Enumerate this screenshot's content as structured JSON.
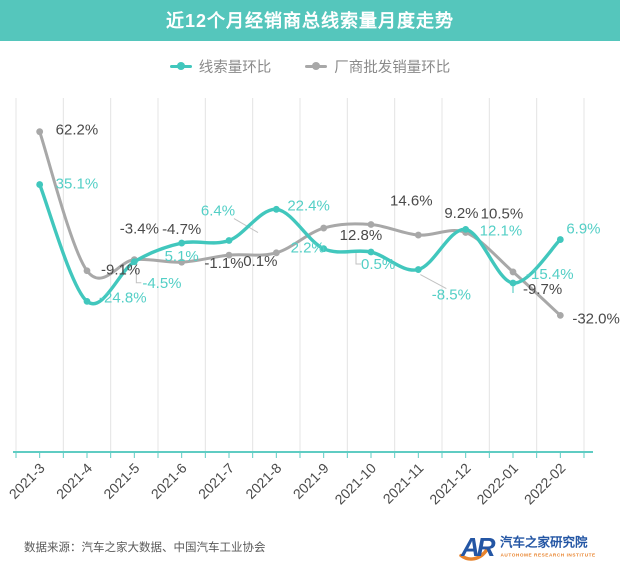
{
  "header": {
    "title": "近12个月经销商总线索量月度走势",
    "bg_color": "#55c6bc",
    "text_color": "#ffffff"
  },
  "legend": {
    "items": [
      {
        "label": "线索量环比",
        "color": "#41c7bd"
      },
      {
        "label": "厂商批发销量环比",
        "color": "#a8a8a8"
      }
    ]
  },
  "chart_data": {
    "type": "line",
    "title": "近12个月经销商总线索量月度走势",
    "unit": "%",
    "categories": [
      "2021-3",
      "2021-4",
      "2021-5",
      "2021-6",
      "2021-7",
      "2021-8",
      "2021-9",
      "2021-10",
      "2021-11",
      "2021-12",
      "2022-01",
      "2022-02"
    ],
    "series": [
      {
        "name": "线索量环比",
        "color": "#41c7bd",
        "label_color": "#53cfc6",
        "values": [
          35.1,
          -24.8,
          -4.5,
          5.1,
          6.4,
          22.4,
          2.2,
          0.5,
          -8.5,
          12.1,
          -15.4,
          6.9
        ]
      },
      {
        "name": "厂商批发销量环比",
        "color": "#a8a8a8",
        "label_color": "#4a4a4a",
        "values": [
          62.2,
          -9.1,
          -3.4,
          -4.7,
          -1.1,
          0.1,
          12.8,
          14.6,
          9.2,
          10.5,
          -9.7,
          -32.0
        ]
      }
    ],
    "point_labels_visible": true,
    "label_format": "one-decimal-percent",
    "legend_position": "top",
    "grid": "vertical-only",
    "grid_color": "#e4e4e4",
    "axis_color": "#5fccc3",
    "tick_label_color": "#4a4a4a",
    "y_axis_labels_visible": false,
    "y_range_approx": [
      -100,
      80
    ],
    "x_tick_rotation_deg": -45
  },
  "footer": {
    "source": "数据来源：汽车之家大数据、中国汽车工业协会"
  },
  "logo": {
    "monogram": "AR",
    "name_cn": "汽车之家研究院",
    "name_en": "AUTOHOME RESEARCH INSTITUTE",
    "blue": "#2456a4",
    "orange": "#e8832c"
  }
}
